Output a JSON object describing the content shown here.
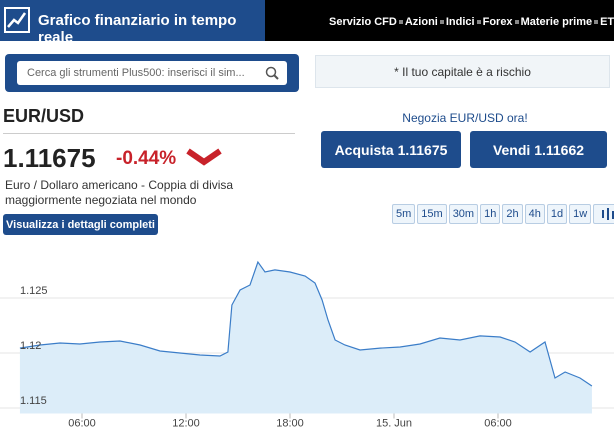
{
  "header": {
    "title": "Grafico finanziario in tempo reale",
    "nav": [
      "Servizio CFD",
      "Azioni",
      "Indici",
      "Forex",
      "Materie prime",
      "ETF"
    ]
  },
  "search": {
    "placeholder": "Cerca gli strumenti Plus500: inserisci il sim..."
  },
  "risk_notice": "* Il tuo capitale è a rischio",
  "instrument": {
    "symbol": "EUR/USD",
    "price": "1.11675",
    "change": "-0.44%",
    "description": "Euro / Dollaro americano - Coppia di divisa maggiormente negoziata nel mondo",
    "details_button": "Visualizza i dettagli completi"
  },
  "trade": {
    "cta": "Negozia EUR/USD ora!",
    "buy": "Acquista 1.11675",
    "sell": "Vendi 1.11662"
  },
  "timeframes": [
    "5m",
    "15m",
    "30m",
    "1h",
    "2h",
    "4h",
    "1d",
    "1w"
  ],
  "chart_data": {
    "type": "area",
    "color": "#3b7dc8",
    "fill": "#dcedf9",
    "grid": true,
    "x": [
      2.42,
      3.58,
      4.73,
      5.88,
      7.04,
      8.19,
      9.35,
      10.5,
      11.65,
      12.81,
      13.96,
      14.42,
      14.65,
      15.12,
      15.69,
      16.15,
      16.56,
      17.13,
      18.0,
      18.87,
      19.44,
      19.85,
      20.19,
      20.6,
      21.17,
      22.04,
      23.19,
      24.35,
      25.5,
      26.65,
      27.81,
      28.96,
      30.12,
      30.98,
      31.85,
      32.71,
      33.29,
      33.87,
      34.73,
      35.42
    ],
    "values": [
      1.12045,
      1.12073,
      1.12091,
      1.12082,
      1.121,
      1.12109,
      1.12073,
      1.12018,
      1.12,
      1.11982,
      1.11973,
      1.12009,
      1.12436,
      1.12573,
      1.12618,
      1.12827,
      1.12736,
      1.12755,
      1.12736,
      1.127,
      1.12636,
      1.12482,
      1.123,
      1.12118,
      1.12073,
      1.12027,
      1.12045,
      1.12055,
      1.12082,
      1.12136,
      1.12118,
      1.12155,
      1.12145,
      1.121,
      1.12009,
      1.121,
      1.11773,
      1.11827,
      1.11773,
      1.117
    ],
    "xlim": [
      2.4,
      35.7
    ],
    "ylim": [
      1.1145,
      1.1295
    ],
    "xticks": [
      {
        "value": 6,
        "label": "06:00"
      },
      {
        "value": 12,
        "label": "12:00"
      },
      {
        "value": 18,
        "label": "18:00"
      },
      {
        "value": 24,
        "label": "15. Jun"
      },
      {
        "value": 30,
        "label": "06:00"
      }
    ],
    "yticks": [
      1.115,
      1.12,
      1.125
    ]
  }
}
